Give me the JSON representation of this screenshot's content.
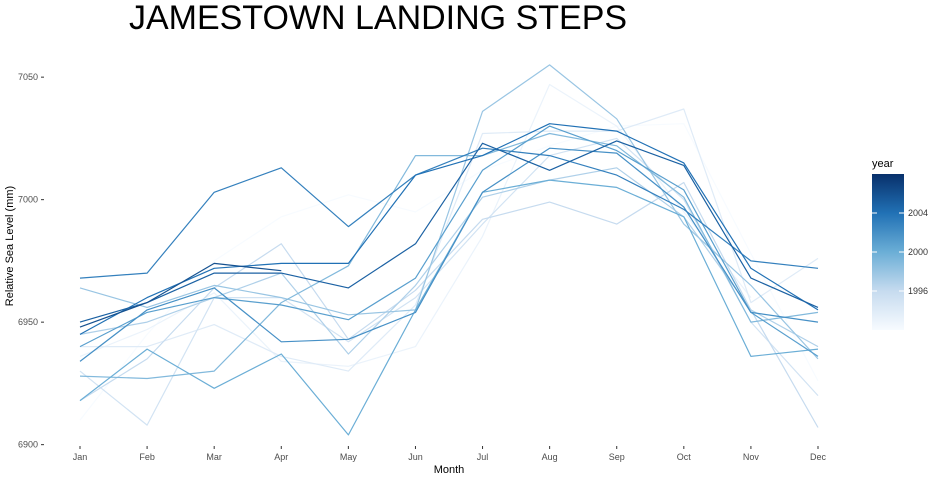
{
  "chart_data": {
    "type": "line",
    "title": "JAMESTOWN LANDING STEPS",
    "xlabel": "Month",
    "ylabel": "Relative Sea Level (mm)",
    "categories": [
      "Jan",
      "Feb",
      "Mar",
      "Apr",
      "May",
      "Jun",
      "Jul",
      "Aug",
      "Sep",
      "Oct",
      "Nov",
      "Dec"
    ],
    "ylim": [
      6897,
      7057
    ],
    "yticks": [
      6900,
      6950,
      7000,
      7050
    ],
    "grid": false,
    "legend": {
      "title": "year",
      "placement": "right",
      "type": "colorbar",
      "range": [
        1992,
        2008
      ],
      "ticks": [
        1996,
        2000,
        2004
      ],
      "low_color": "#f7fbff",
      "high_color": "#08306b"
    },
    "series": [
      {
        "year": 1992,
        "values": [
          6910,
          6945,
          6975,
          6993,
          7002,
          6995,
          7012,
          7022,
          7030,
          7031,
          6978,
          6926
        ]
      },
      {
        "year": 1993,
        "values": [
          6936,
          6947,
          6962,
          6934,
          6932,
          6940,
          6985,
          7047,
          7030,
          6995,
          6960,
          null
        ]
      },
      {
        "year": 1994,
        "values": [
          6940,
          6940,
          6949,
          6936,
          6930,
          6957,
          7027,
          7028,
          7028,
          7037,
          6958,
          6976
        ]
      },
      {
        "year": 1995,
        "values": [
          6930,
          6908,
          6960,
          6960,
          6942,
          6960,
          6990,
          7018,
          7025,
          7000,
          6950,
          6920
        ]
      },
      {
        "year": 1996,
        "values": [
          6918,
          6935,
          6964,
          6982,
          6943,
          6963,
          6992,
          6999,
          6990,
          7007,
          6955,
          6907
        ]
      },
      {
        "year": 1997,
        "values": [
          6945,
          6950,
          6960,
          6970,
          6937,
          6965,
          7001,
          7008,
          7013,
          6993,
          6955,
          6940
        ]
      },
      {
        "year": 1998,
        "values": [
          6964,
          6956,
          6965,
          6960,
          6953,
          6955,
          7036,
          7055,
          7033,
          6990,
          6965,
          6935
        ]
      },
      {
        "year": 1999,
        "values": [
          6928,
          6927,
          6930,
          6958,
          6973,
          7018,
          7018,
          7027,
          7022,
          7001,
          6950,
          6954
        ]
      },
      {
        "year": 2000,
        "values": [
          6918,
          6939,
          6923,
          6937,
          6904,
          6955,
          7003,
          7008,
          7005,
          6993,
          6936,
          6939
        ]
      },
      {
        "year": 2001,
        "values": [
          6940,
          6954,
          6960,
          6957,
          6951,
          6968,
          7012,
          7030,
          7020,
          7004,
          6954,
          6936
        ]
      },
      {
        "year": 2002,
        "values": [
          6934,
          6955,
          6964,
          6942,
          6943,
          6954,
          7003,
          7021,
          7019,
          6997,
          6954,
          6950
        ]
      },
      {
        "year": 2003,
        "values": [
          6968,
          6970,
          7003,
          7013,
          6989,
          7010,
          7021,
          7018,
          7010,
          6996,
          6975,
          6972
        ]
      },
      {
        "year": 2004,
        "values": [
          6945,
          6960,
          6972,
          6974,
          6974,
          7010,
          7018,
          7031,
          7028,
          7015,
          6972,
          6955
        ]
      },
      {
        "year": 2005,
        "values": [
          6950,
          6958,
          6970,
          6970,
          6964,
          6982,
          7023,
          7012,
          7024,
          7014,
          6968,
          6956
        ]
      },
      {
        "year": 2006,
        "values": [
          6948,
          6958,
          6974,
          6971,
          null,
          null,
          null,
          null,
          null,
          null,
          null,
          null
        ]
      }
    ]
  }
}
